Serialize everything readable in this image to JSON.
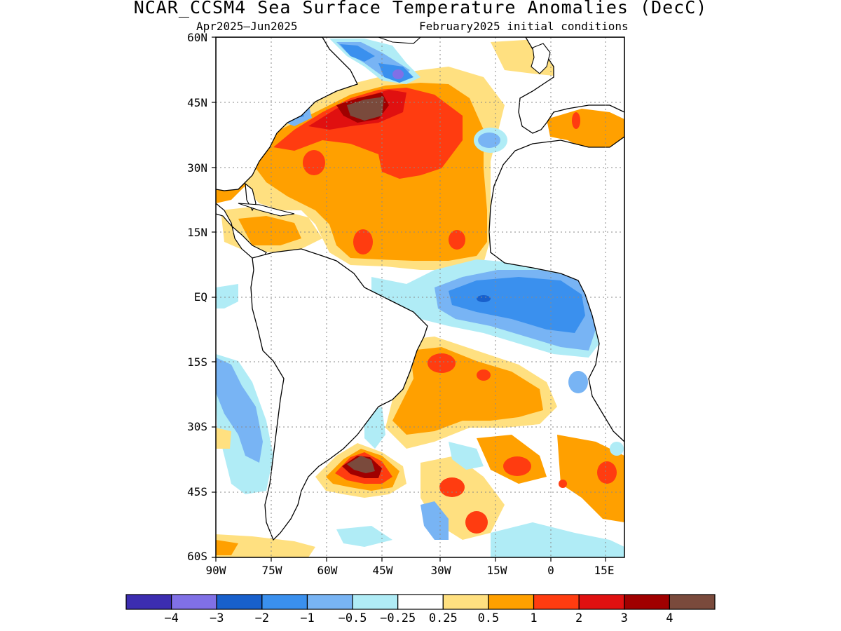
{
  "title": "NCAR_CCSM4 Sea Surface Temperature Anomalies (DecC)",
  "subtitle_left": "Apr2025–Jun2025",
  "subtitle_right": "February2025 initial conditions",
  "lat_labels": [
    "60N",
    "45N",
    "30N",
    "15N",
    "EQ",
    "15S",
    "30S",
    "45S",
    "60S"
  ],
  "lon_labels": [
    "90W",
    "75W",
    "60W",
    "45W",
    "30W",
    "15W",
    "0",
    "15E"
  ],
  "colorbar": {
    "colors": [
      "#3c2db0",
      "#8070e6",
      "#1860cc",
      "#3a90ee",
      "#78b4f4",
      "#b0ecf6",
      "#ffffff",
      "#ffe080",
      "#ffa000",
      "#ff3c10",
      "#e01010",
      "#a00000",
      "#7a4a3c"
    ],
    "labels": [
      "−4",
      "−3",
      "−2",
      "−1",
      "−0.5",
      "−0.25",
      "0.25",
      "0.5",
      "1",
      "2",
      "3",
      "4"
    ]
  }
}
